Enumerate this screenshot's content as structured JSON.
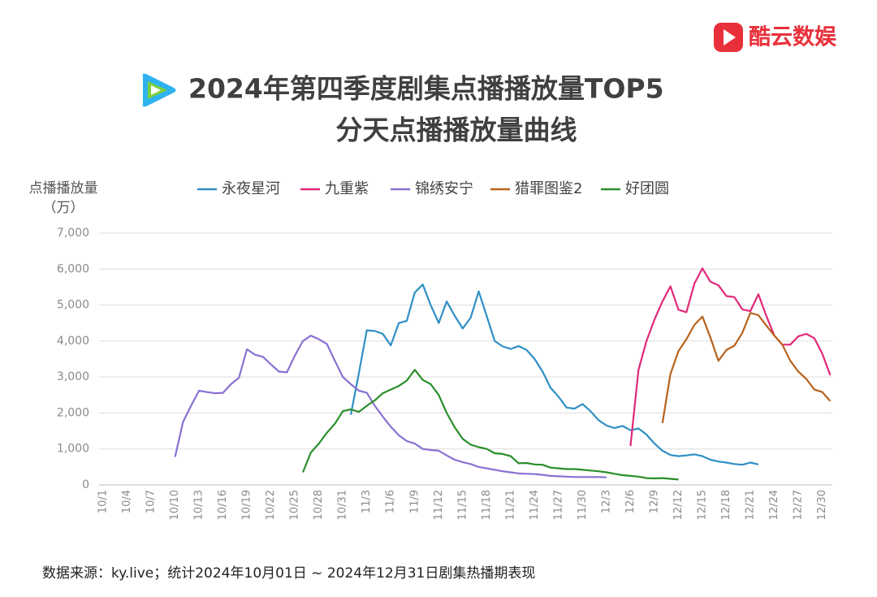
{
  "brand": "酷云数娱",
  "chart_data": {
    "type": "line",
    "title_lines": [
      "2024年第四季度剧集点播播放量TOP5",
      "分天点播播放量曲线"
    ],
    "y_label_lines": [
      "点播播放量",
      "（万）"
    ],
    "footnote": "数据来源：ky.live；统计2024年10月01日 ~ 2024年12月31日剧集热播期表现",
    "categories": [
      "10/1",
      null,
      null,
      "10/4",
      null,
      null,
      "10/7",
      null,
      null,
      "10/10",
      null,
      null,
      "10/13",
      null,
      null,
      "10/16",
      null,
      null,
      "10/19",
      null,
      null,
      "10/22",
      null,
      null,
      "10/25",
      null,
      null,
      "10/28",
      null,
      null,
      "10/31",
      null,
      null,
      "11/3",
      null,
      null,
      "11/6",
      null,
      null,
      "11/9",
      null,
      null,
      "11/12",
      null,
      null,
      "11/15",
      null,
      null,
      "11/18",
      null,
      null,
      "11/21",
      null,
      null,
      "11/24",
      null,
      null,
      "11/27",
      null,
      null,
      "11/30",
      null,
      null,
      "12/3",
      null,
      null,
      "12/6",
      null,
      null,
      "12/9",
      null,
      null,
      "12/12",
      null,
      null,
      "12/15",
      null,
      null,
      "12/18",
      null,
      null,
      "12/21",
      null,
      null,
      "12/24",
      null,
      null,
      "12/27",
      null,
      null,
      "12/30",
      null
    ],
    "ylim": [
      0,
      7000
    ],
    "yticks": [
      0,
      {
        "value": 1000,
        "label": "1,000"
      },
      {
        "value": 2000,
        "label": "2,000"
      },
      {
        "value": 3000,
        "label": "3,000"
      },
      {
        "value": 4000,
        "label": "4,000"
      },
      {
        "value": 5000,
        "label": "5,000"
      },
      {
        "value": 6000,
        "label": "6,000"
      },
      {
        "value": 7000,
        "label": "7,000"
      }
    ],
    "grid": true,
    "legend": "top",
    "series": [
      {
        "name": "永夜星河",
        "color": "#2f8fc4",
        "values": [
          null,
          null,
          null,
          null,
          null,
          null,
          null,
          null,
          null,
          null,
          null,
          null,
          null,
          null,
          null,
          null,
          null,
          null,
          null,
          null,
          null,
          null,
          null,
          null,
          null,
          null,
          null,
          null,
          null,
          null,
          null,
          1950,
          3100,
          4300,
          4280,
          4200,
          3880,
          4500,
          4560,
          5350,
          5570,
          5000,
          4500,
          5100,
          4700,
          4350,
          4650,
          5380,
          4700,
          4000,
          3850,
          3780,
          3860,
          3750,
          3500,
          3150,
          2700,
          2450,
          2150,
          2120,
          2250,
          2050,
          1800,
          1650,
          1580,
          1640,
          1520,
          1570,
          1400,
          1150,
          950,
          830,
          800,
          820,
          850,
          800,
          700,
          650,
          620,
          580,
          560,
          620,
          570,
          null,
          null,
          null,
          null,
          null,
          null,
          null,
          null,
          null
        ]
      },
      {
        "name": "九重紫",
        "color": "#e2287a",
        "values": [
          null,
          null,
          null,
          null,
          null,
          null,
          null,
          null,
          null,
          null,
          null,
          null,
          null,
          null,
          null,
          null,
          null,
          null,
          null,
          null,
          null,
          null,
          null,
          null,
          null,
          null,
          null,
          null,
          null,
          null,
          null,
          null,
          null,
          null,
          null,
          null,
          null,
          null,
          null,
          null,
          null,
          null,
          null,
          null,
          null,
          null,
          null,
          null,
          null,
          null,
          null,
          null,
          null,
          null,
          null,
          null,
          null,
          null,
          null,
          null,
          null,
          null,
          null,
          null,
          null,
          null,
          1080,
          3200,
          4000,
          4600,
          5100,
          5520,
          4870,
          4800,
          5600,
          6020,
          5650,
          5550,
          5250,
          5220,
          4880,
          4830,
          5300,
          4700,
          4150,
          3900,
          3900,
          4130,
          4200,
          4080,
          3650,
          3050
        ]
      },
      {
        "name": "锦绣安宁",
        "color": "#8a70d2",
        "values": [
          null,
          null,
          null,
          null,
          null,
          null,
          null,
          null,
          null,
          780,
          1750,
          2200,
          2620,
          2580,
          2550,
          2560,
          2800,
          2980,
          3770,
          3620,
          3560,
          3350,
          3150,
          3130,
          3600,
          4000,
          4150,
          4050,
          3920,
          3450,
          3000,
          2800,
          2620,
          2560,
          2200,
          1900,
          1620,
          1380,
          1220,
          1150,
          1000,
          970,
          950,
          820,
          700,
          630,
          580,
          500,
          460,
          420,
          380,
          350,
          320,
          310,
          300,
          280,
          250,
          240,
          230,
          220,
          220,
          220,
          220,
          210,
          null,
          null,
          null,
          null,
          null,
          null,
          null,
          null,
          null,
          null,
          null,
          null,
          null,
          null,
          null,
          null,
          null,
          null,
          null,
          null,
          null,
          null,
          null,
          null,
          null,
          null,
          null,
          null
        ]
      },
      {
        "name": "猎罪图鉴2",
        "color": "#b8621c",
        "values": [
          null,
          null,
          null,
          null,
          null,
          null,
          null,
          null,
          null,
          null,
          null,
          null,
          null,
          null,
          null,
          null,
          null,
          null,
          null,
          null,
          null,
          null,
          null,
          null,
          null,
          null,
          null,
          null,
          null,
          null,
          null,
          null,
          null,
          null,
          null,
          null,
          null,
          null,
          null,
          null,
          null,
          null,
          null,
          null,
          null,
          null,
          null,
          null,
          null,
          null,
          null,
          null,
          null,
          null,
          null,
          null,
          null,
          null,
          null,
          null,
          null,
          null,
          null,
          null,
          null,
          null,
          null,
          null,
          null,
          null,
          1720,
          3080,
          3720,
          4050,
          4450,
          4680,
          4100,
          3450,
          3750,
          3870,
          4230,
          4780,
          4720,
          4430,
          4150,
          3900,
          3450,
          3150,
          2950,
          2650,
          2580,
          2330
        ]
      },
      {
        "name": "好团圆",
        "color": "#2a8e2a",
        "values": [
          null,
          null,
          null,
          null,
          null,
          null,
          null,
          null,
          null,
          null,
          null,
          null,
          null,
          null,
          null,
          null,
          null,
          null,
          null,
          null,
          null,
          null,
          null,
          null,
          null,
          350,
          900,
          1150,
          1450,
          1700,
          2050,
          2100,
          2030,
          2200,
          2350,
          2550,
          2650,
          2750,
          2900,
          3200,
          2920,
          2800,
          2500,
          2000,
          1600,
          1280,
          1120,
          1050,
          1000,
          880,
          860,
          800,
          600,
          610,
          570,
          560,
          480,
          460,
          440,
          440,
          420,
          400,
          380,
          350,
          310,
          270,
          250,
          230,
          190,
          180,
          190,
          170,
          150,
          null,
          null,
          null,
          null,
          null,
          null,
          null,
          null,
          null,
          null,
          null,
          null,
          null,
          null,
          null,
          null,
          null,
          null,
          null
        ]
      }
    ]
  }
}
